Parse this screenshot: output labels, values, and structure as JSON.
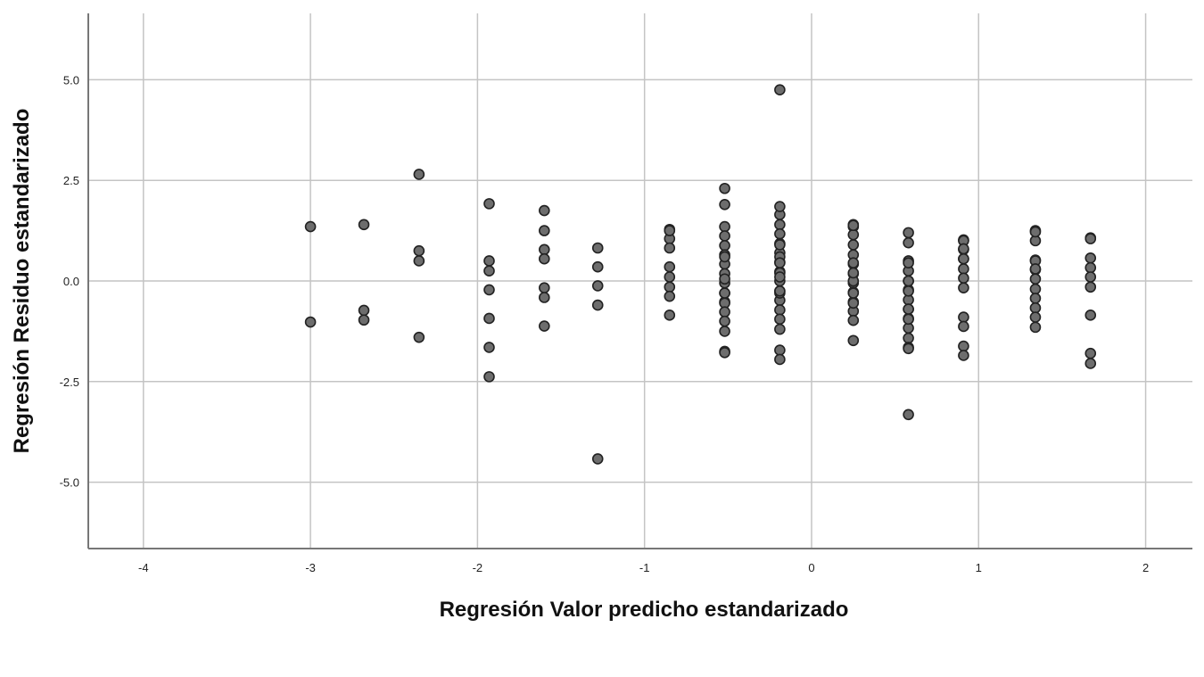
{
  "chart_data": {
    "type": "scatter",
    "xlabel": "Regresión Valor predicho estandarizado",
    "ylabel": "Regresión Residuo estandarizado",
    "xlim": [
      -4.33,
      2.28
    ],
    "ylim": [
      -6.65,
      6.65
    ],
    "x_ticks": [
      -4,
      -3,
      -2,
      -1,
      0,
      1,
      2
    ],
    "x_tick_labels": [
      "-4",
      "-3",
      "-2",
      "-1",
      "0",
      "1",
      "2"
    ],
    "y_ticks": [
      5.0,
      2.5,
      0.0,
      -2.5,
      -5.0
    ],
    "y_tick_labels": [
      "5.0",
      "2.5",
      "0.0",
      "-2.5",
      "-5.0"
    ],
    "grid": true,
    "colors": {
      "point_fill": "#6d6d6d",
      "point_stroke": "#222222",
      "grid": "#c4c4c4",
      "axis": "#777777"
    },
    "series": [
      {
        "x": [
          -3.0,
          -3.0,
          -2.68,
          -2.68,
          -2.68,
          -2.35,
          -2.35,
          -2.35,
          -2.35,
          -1.93,
          -1.93,
          -1.93,
          -1.93,
          -1.93,
          -1.93,
          -1.93,
          -1.6,
          -1.6,
          -1.6,
          -1.6,
          -1.6,
          -1.6,
          -1.6,
          -1.28,
          -1.28,
          -1.28,
          -1.28,
          -1.28,
          -0.85,
          -0.85,
          -0.85,
          -0.85,
          -0.85,
          -0.85,
          -0.85,
          -0.85,
          -0.85,
          -0.52,
          -0.52,
          -0.52,
          -0.52,
          -0.52,
          -0.52,
          -0.52,
          -0.52,
          -0.52,
          -0.52,
          -0.52,
          -0.52,
          -0.52,
          -0.52,
          -0.52,
          -0.52,
          -0.52,
          -0.52,
          -0.52,
          -0.52,
          -0.19,
          -0.19,
          -0.19,
          -0.19,
          -0.19,
          -0.19,
          -0.19,
          -0.19,
          -0.19,
          -0.19,
          -0.19,
          -0.19,
          -0.19,
          -0.19,
          -0.19,
          -0.19,
          -0.19,
          -0.19,
          -0.19,
          -0.19,
          -0.19,
          -0.19,
          -0.19,
          -0.19,
          0.25,
          0.25,
          0.25,
          0.25,
          0.25,
          0.25,
          0.25,
          0.25,
          0.25,
          0.25,
          0.25,
          0.25,
          0.25,
          0.25,
          0.25,
          0.25,
          0.25,
          0.25,
          0.25,
          0.58,
          0.58,
          0.58,
          0.58,
          0.58,
          0.58,
          0.58,
          0.58,
          0.58,
          0.58,
          0.58,
          0.58,
          0.58,
          0.58,
          0.58,
          0.58,
          0.58,
          0.58,
          0.58,
          0.91,
          0.91,
          0.91,
          0.91,
          0.91,
          0.91,
          0.91,
          0.91,
          0.91,
          0.91,
          0.91,
          0.91,
          0.91,
          1.34,
          1.34,
          1.34,
          1.34,
          1.34,
          1.34,
          1.34,
          1.34,
          1.34,
          1.34,
          1.34,
          1.34,
          1.34,
          1.67,
          1.67,
          1.67,
          1.67,
          1.67,
          1.67,
          1.67,
          1.67,
          1.67
        ],
        "y": [
          1.35,
          -1.02,
          1.4,
          -0.73,
          -0.97,
          2.65,
          0.75,
          0.5,
          -1.4,
          1.92,
          0.5,
          0.25,
          -0.22,
          -0.93,
          -1.65,
          -2.38,
          1.75,
          1.25,
          0.78,
          0.55,
          -0.17,
          -0.41,
          -1.12,
          0.82,
          0.35,
          -0.12,
          -0.6,
          -4.42,
          1.28,
          1.05,
          0.82,
          0.35,
          0.1,
          -0.15,
          -0.38,
          -0.85,
          1.25,
          2.3,
          1.35,
          1.12,
          0.88,
          0.65,
          0.42,
          0.18,
          -0.05,
          -0.3,
          -0.52,
          -0.55,
          -0.77,
          -1.0,
          -1.25,
          -1.75,
          -1.78,
          -0.3,
          0.05,
          0.6,
          1.9,
          1.65,
          1.4,
          1.17,
          0.93,
          0.7,
          0.47,
          0.23,
          0.0,
          -0.25,
          -0.48,
          -0.72,
          -0.95,
          -1.2,
          -1.72,
          -1.95,
          0.6,
          0.2,
          -0.3,
          1.85,
          0.9,
          0.1,
          -0.25,
          0.45,
          4.75,
          1.4,
          1.35,
          1.15,
          0.9,
          0.65,
          0.42,
          0.18,
          -0.05,
          -0.28,
          -0.52,
          -0.75,
          -0.98,
          -1.48,
          -0.3,
          0.0,
          0.45,
          1.38,
          -0.55,
          0.2,
          1.2,
          0.95,
          0.5,
          0.25,
          0.0,
          -0.22,
          -0.47,
          -0.7,
          -0.93,
          -1.17,
          -1.42,
          -1.65,
          -1.68,
          -3.32,
          0.45,
          0.0,
          -0.95,
          -0.25,
          -0.7,
          1.02,
          0.78,
          0.55,
          0.3,
          0.07,
          -0.17,
          -0.9,
          -1.13,
          -1.62,
          -1.85,
          1.0,
          0.55,
          0.8,
          1.25,
          1.0,
          0.52,
          0.28,
          0.05,
          -0.2,
          -0.43,
          -0.67,
          -0.9,
          -1.15,
          1.22,
          0.5,
          0.3,
          1.07,
          0.57,
          0.33,
          0.1,
          -0.15,
          -0.85,
          -1.8,
          -2.05,
          1.05
        ]
      }
    ]
  }
}
